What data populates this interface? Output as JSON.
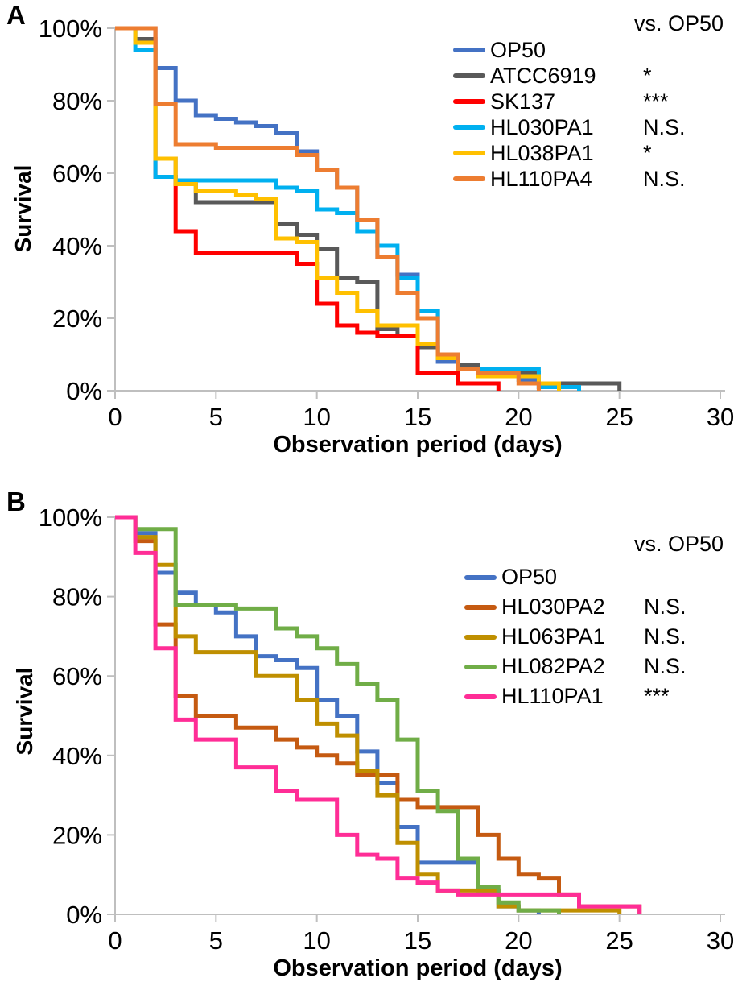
{
  "chart_data": [
    {
      "type": "line",
      "step": true,
      "panel_letter": "A",
      "xlabel": "Observation period (days)",
      "ylabel": "Survival",
      "legend_header": "vs. OP50",
      "legend_position": "top-right",
      "grid": false,
      "xlim": [
        0,
        30
      ],
      "ylim": [
        0,
        100
      ],
      "x_ticks": [
        0,
        5,
        10,
        15,
        20,
        25,
        30
      ],
      "y_tick_labels": [
        "0%",
        "20%",
        "40%",
        "60%",
        "80%",
        "100%"
      ],
      "axis_color": "#BFBFBF",
      "series": [
        {
          "name": "OP50",
          "vs_op50_significance": "",
          "color": "#4472C4",
          "points": [
            [
              0,
              100
            ],
            [
              2,
              89
            ],
            [
              3,
              80
            ],
            [
              4,
              76
            ],
            [
              5,
              75
            ],
            [
              6,
              74
            ],
            [
              7,
              73
            ],
            [
              8,
              71
            ],
            [
              9,
              66
            ],
            [
              10,
              61
            ],
            [
              11,
              56
            ],
            [
              12,
              47
            ],
            [
              13,
              37
            ],
            [
              14,
              32
            ],
            [
              15,
              22
            ],
            [
              16,
              8
            ],
            [
              17,
              6
            ],
            [
              18,
              4
            ],
            [
              20,
              3
            ],
            [
              21,
              1
            ],
            [
              22,
              0
            ]
          ]
        },
        {
          "name": "ATCC6919",
          "vs_op50_significance": "*",
          "color": "#595959",
          "points": [
            [
              0,
              100
            ],
            [
              1,
              97
            ],
            [
              2,
              64
            ],
            [
              3,
              57
            ],
            [
              4,
              52
            ],
            [
              8,
              46
            ],
            [
              9,
              43
            ],
            [
              10,
              39
            ],
            [
              11,
              31
            ],
            [
              12,
              30
            ],
            [
              13,
              17
            ],
            [
              14,
              15
            ],
            [
              15,
              12
            ],
            [
              16,
              9
            ],
            [
              17,
              7
            ],
            [
              18,
              5
            ],
            [
              21,
              2
            ],
            [
              25,
              0
            ]
          ]
        },
        {
          "name": "SK137",
          "vs_op50_significance": "***",
          "color": "#FF0000",
          "points": [
            [
              0,
              100
            ],
            [
              2,
              59
            ],
            [
              3,
              44
            ],
            [
              4,
              38
            ],
            [
              9,
              35
            ],
            [
              10,
              24
            ],
            [
              11,
              18
            ],
            [
              12,
              16
            ],
            [
              13,
              15
            ],
            [
              15,
              5
            ],
            [
              17,
              2
            ],
            [
              19,
              0
            ]
          ]
        },
        {
          "name": "HL030PA1",
          "vs_op50_significance": "N.S.",
          "color": "#00B0F0",
          "points": [
            [
              0,
              100
            ],
            [
              1,
              94
            ],
            [
              2,
              59
            ],
            [
              3,
              58
            ],
            [
              8,
              56
            ],
            [
              9,
              55
            ],
            [
              10,
              50
            ],
            [
              11,
              49
            ],
            [
              12,
              44
            ],
            [
              13,
              40
            ],
            [
              14,
              31
            ],
            [
              15,
              22
            ],
            [
              16,
              9
            ],
            [
              17,
              6
            ],
            [
              21,
              1
            ],
            [
              23,
              0
            ]
          ]
        },
        {
          "name": "HL038PA1",
          "vs_op50_significance": "*",
          "color": "#FFC000",
          "points": [
            [
              0,
              100
            ],
            [
              1,
              96
            ],
            [
              2,
              64
            ],
            [
              3,
              57
            ],
            [
              4,
              55
            ],
            [
              6,
              54
            ],
            [
              7,
              53
            ],
            [
              8,
              42
            ],
            [
              9,
              41
            ],
            [
              10,
              31
            ],
            [
              11,
              27
            ],
            [
              12,
              22
            ],
            [
              13,
              18
            ],
            [
              15,
              13
            ],
            [
              16,
              9
            ],
            [
              17,
              6
            ],
            [
              18,
              4
            ],
            [
              21,
              2
            ],
            [
              22,
              0
            ]
          ]
        },
        {
          "name": "HL110PA4",
          "vs_op50_significance": "N.S.",
          "color": "#ED7D31",
          "points": [
            [
              0,
              100
            ],
            [
              2,
              79
            ],
            [
              3,
              68
            ],
            [
              5,
              67
            ],
            [
              9,
              65
            ],
            [
              10,
              61
            ],
            [
              11,
              56
            ],
            [
              12,
              47
            ],
            [
              13,
              37
            ],
            [
              14,
              27
            ],
            [
              15,
              20
            ],
            [
              16,
              10
            ],
            [
              17,
              6
            ],
            [
              18,
              5
            ],
            [
              20,
              2
            ],
            [
              21,
              0
            ]
          ]
        }
      ]
    },
    {
      "type": "line",
      "step": true,
      "panel_letter": "B",
      "xlabel": "Observation period (days)",
      "ylabel": "Survival",
      "legend_header": "vs. OP50",
      "legend_position": "top-right",
      "grid": false,
      "xlim": [
        0,
        30
      ],
      "ylim": [
        0,
        100
      ],
      "x_ticks": [
        0,
        5,
        10,
        15,
        20,
        25,
        30
      ],
      "y_tick_labels": [
        "0%",
        "20%",
        "40%",
        "60%",
        "80%",
        "100%"
      ],
      "axis_color": "#BFBFBF",
      "series": [
        {
          "name": "OP50",
          "vs_op50_significance": "",
          "color": "#4472C4",
          "points": [
            [
              0,
              100
            ],
            [
              1,
              96
            ],
            [
              2,
              86
            ],
            [
              3,
              81
            ],
            [
              4,
              78
            ],
            [
              5,
              76
            ],
            [
              6,
              70
            ],
            [
              7,
              65
            ],
            [
              8,
              64
            ],
            [
              9,
              62
            ],
            [
              10,
              54
            ],
            [
              11,
              50
            ],
            [
              12,
              41
            ],
            [
              13,
              33
            ],
            [
              14,
              22
            ],
            [
              15,
              13
            ],
            [
              18,
              6
            ],
            [
              19,
              2
            ],
            [
              20,
              1
            ],
            [
              21,
              0
            ]
          ]
        },
        {
          "name": "HL030PA2",
          "vs_op50_significance": "N.S.",
          "color": "#C55A11",
          "points": [
            [
              0,
              100
            ],
            [
              1,
              94
            ],
            [
              2,
              73
            ],
            [
              3,
              55
            ],
            [
              4,
              50
            ],
            [
              6,
              47
            ],
            [
              8,
              44
            ],
            [
              9,
              42
            ],
            [
              10,
              40
            ],
            [
              11,
              38
            ],
            [
              12,
              35
            ],
            [
              14,
              29
            ],
            [
              15,
              27
            ],
            [
              18,
              20
            ],
            [
              19,
              14
            ],
            [
              20,
              10
            ],
            [
              21,
              9
            ],
            [
              22,
              5
            ],
            [
              23,
              2
            ],
            [
              26,
              0
            ]
          ]
        },
        {
          "name": "HL063PA1",
          "vs_op50_significance": "N.S.",
          "color": "#BF8F00",
          "points": [
            [
              0,
              100
            ],
            [
              1,
              95
            ],
            [
              2,
              88
            ],
            [
              3,
              70
            ],
            [
              4,
              66
            ],
            [
              7,
              60
            ],
            [
              9,
              54
            ],
            [
              10,
              48
            ],
            [
              11,
              45
            ],
            [
              12,
              36
            ],
            [
              13,
              30
            ],
            [
              14,
              18
            ],
            [
              15,
              10
            ],
            [
              16,
              6
            ],
            [
              19,
              2
            ],
            [
              20,
              1
            ],
            [
              25,
              0
            ]
          ]
        },
        {
          "name": "HL082PA2",
          "vs_op50_significance": "N.S.",
          "color": "#70AD47",
          "points": [
            [
              0,
              100
            ],
            [
              1,
              97
            ],
            [
              3,
              78
            ],
            [
              6,
              77
            ],
            [
              8,
              72
            ],
            [
              9,
              70
            ],
            [
              10,
              67
            ],
            [
              11,
              63
            ],
            [
              12,
              58
            ],
            [
              13,
              54
            ],
            [
              14,
              44
            ],
            [
              15,
              31
            ],
            [
              16,
              26
            ],
            [
              17,
              14
            ],
            [
              18,
              7
            ],
            [
              19,
              3
            ],
            [
              20,
              1
            ],
            [
              22,
              0
            ]
          ]
        },
        {
          "name": "HL110PA1",
          "vs_op50_significance": "***",
          "color": "#FF2D96",
          "points": [
            [
              0,
              100
            ],
            [
              1,
              91
            ],
            [
              2,
              67
            ],
            [
              3,
              49
            ],
            [
              4,
              44
            ],
            [
              6,
              37
            ],
            [
              8,
              31
            ],
            [
              9,
              29
            ],
            [
              11,
              20
            ],
            [
              12,
              15
            ],
            [
              13,
              14
            ],
            [
              14,
              9
            ],
            [
              15,
              8
            ],
            [
              16,
              6
            ],
            [
              17,
              5
            ],
            [
              23,
              2
            ],
            [
              26,
              0
            ]
          ]
        }
      ]
    }
  ]
}
